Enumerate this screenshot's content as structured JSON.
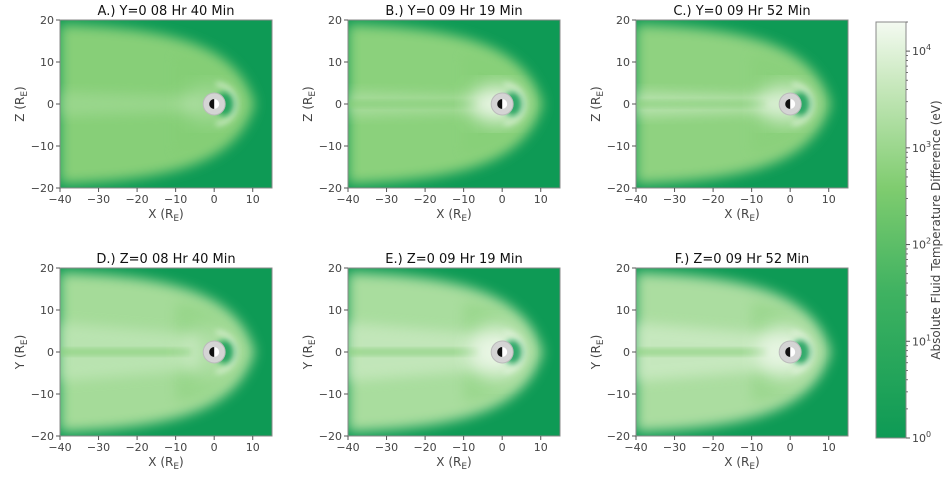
{
  "chart_data": {
    "type": "heatmap",
    "colors": {
      "low": "#0e9a55",
      "mid": "#7fcc6f",
      "high": "#f4faf1",
      "earth": "#d4d4d4"
    },
    "panels": [
      {
        "title": "A.) Y=0  08 Hr 40 Min",
        "xlabel": "X",
        "xlabel_sub": "E",
        "ylabel": "Z",
        "ylabel_sub": "E",
        "xlim": [
          -40,
          15
        ],
        "ylim": [
          -20,
          20
        ],
        "plane": "XZ",
        "tail_intensity": 0.15,
        "ring_intensity": 0.1
      },
      {
        "title": "B.) Y=0  09 Hr 19 Min",
        "xlabel": "X",
        "xlabel_sub": "E",
        "ylabel": "Z",
        "ylabel_sub": "E",
        "xlim": [
          -40,
          15
        ],
        "ylim": [
          -20,
          20
        ],
        "plane": "XZ",
        "tail_intensity": 0.35,
        "ring_intensity": 0.9
      },
      {
        "title": "C.) Y=0  09 Hr 52 Min",
        "xlabel": "X",
        "xlabel_sub": "E",
        "ylabel": "Z",
        "ylabel_sub": "E",
        "xlim": [
          -40,
          15
        ],
        "ylim": [
          -20,
          20
        ],
        "plane": "XZ",
        "tail_intensity": 0.55,
        "ring_intensity": 0.7
      },
      {
        "title": "D.) Z=0  08 Hr 40 Min",
        "xlabel": "X",
        "xlabel_sub": "E",
        "ylabel": "Y",
        "ylabel_sub": "E",
        "xlim": [
          -40,
          15
        ],
        "ylim": [
          -20,
          20
        ],
        "plane": "XY",
        "tail_intensity": 0.5,
        "ring_intensity": 0.1
      },
      {
        "title": "E.) Z=0  09 Hr 19 Min",
        "xlabel": "X",
        "xlabel_sub": "E",
        "ylabel": "Y",
        "ylabel_sub": "E",
        "xlim": [
          -40,
          15
        ],
        "ylim": [
          -20,
          20
        ],
        "plane": "XY",
        "tail_intensity": 0.6,
        "ring_intensity": 0.85
      },
      {
        "title": "F.) Z=0  09 Hr 52 Min",
        "xlabel": "X",
        "xlabel_sub": "E",
        "ylabel": "Y",
        "ylabel_sub": "E",
        "xlim": [
          -40,
          15
        ],
        "ylim": [
          -20,
          20
        ],
        "plane": "XY",
        "tail_intensity": 0.65,
        "ring_intensity": 0.8
      }
    ],
    "x_ticks": [
      -40,
      -30,
      -20,
      -10,
      0,
      10
    ],
    "y_ticks": [
      -20,
      -10,
      0,
      10,
      20
    ],
    "colorbar": {
      "label": "Absolute Fluid Temperature Difference (eV)",
      "scale": "log",
      "range": [
        1,
        20000
      ],
      "ticks": [
        {
          "base": "10",
          "exp": "4",
          "value": 10000
        },
        {
          "base": "10",
          "exp": "3",
          "value": 1000
        },
        {
          "base": "10",
          "exp": "2",
          "value": 100
        },
        {
          "base": "10",
          "exp": "1",
          "value": 10
        },
        {
          "base": "10",
          "exp": "0",
          "value": 1
        }
      ]
    }
  }
}
